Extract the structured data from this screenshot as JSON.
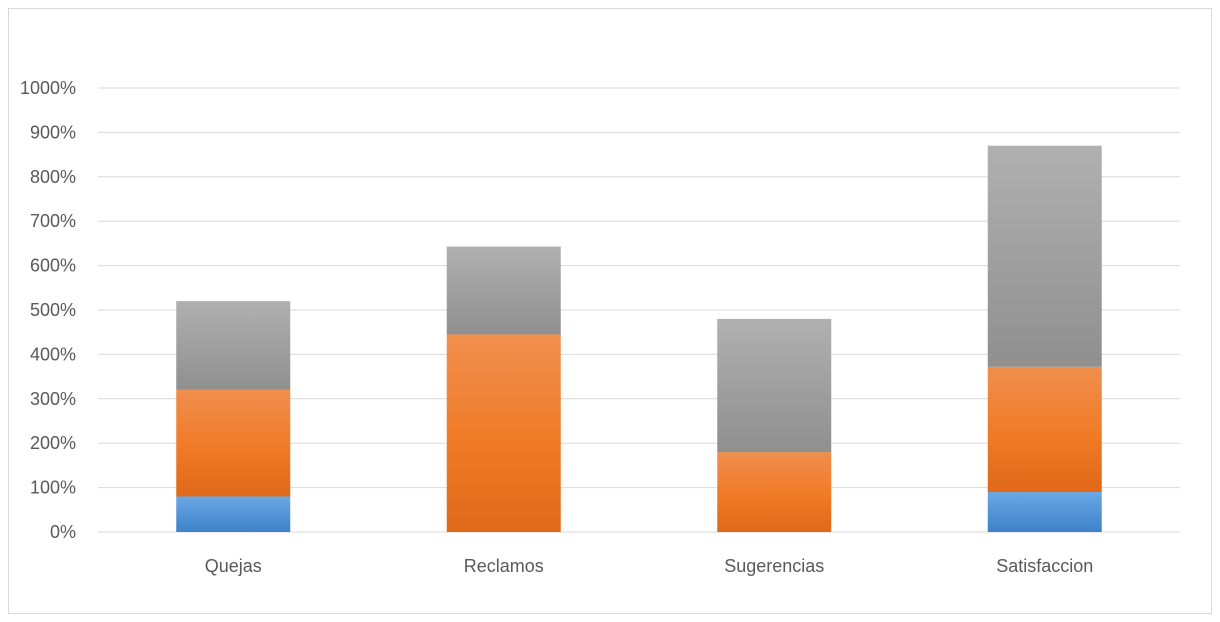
{
  "chart_data": {
    "type": "bar",
    "stacked": true,
    "categories": [
      "Quejas",
      "Reclamos",
      "Sugerencias",
      "Satisfaccion"
    ],
    "series": [
      {
        "values": [
          80,
          0,
          0,
          90
        ],
        "color": "#4a8fd6"
      },
      {
        "values": [
          240,
          445,
          180,
          282
        ],
        "color": "#ee7a2c"
      },
      {
        "values": [
          200,
          198,
          300,
          498
        ],
        "color": "#a3a3a3"
      }
    ],
    "y_ticks": [
      "0%",
      "100%",
      "200%",
      "300%",
      "400%",
      "500%",
      "600%",
      "700%",
      "800%",
      "900%",
      "1000%"
    ],
    "ylim": [
      0,
      1000
    ],
    "y_unit": "%",
    "grid": true,
    "legend": "none"
  }
}
